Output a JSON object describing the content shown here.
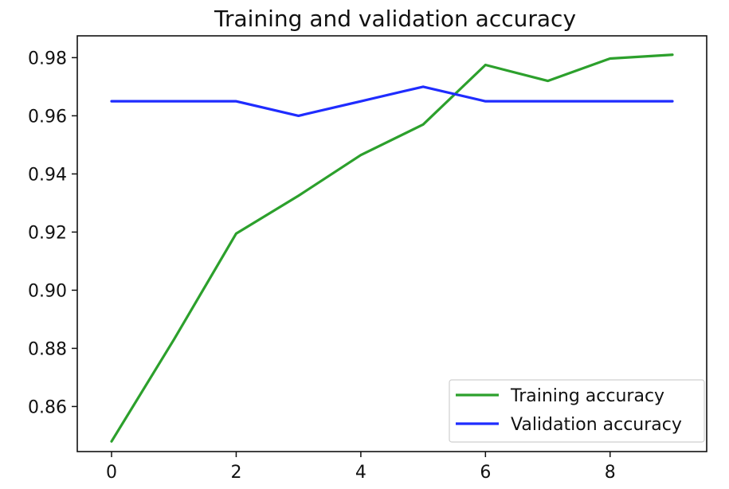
{
  "chart_data": {
    "type": "line",
    "title": "Training and validation accuracy",
    "xlabel": "",
    "ylabel": "",
    "x": [
      0,
      1,
      2,
      3,
      4,
      5,
      6,
      7,
      8,
      9
    ],
    "series": [
      {
        "name": "Training accuracy",
        "color": "#2ca02c",
        "values": [
          0.848,
          0.883,
          0.9195,
          0.9325,
          0.9465,
          0.957,
          0.9775,
          0.972,
          0.9797,
          0.981
        ]
      },
      {
        "name": "Validation accuracy",
        "color": "#1f2cff",
        "values": [
          0.965,
          0.965,
          0.965,
          0.96,
          0.965,
          0.97,
          0.965,
          0.965,
          0.965,
          0.965
        ]
      }
    ],
    "xlim": [
      -0.55,
      9.55
    ],
    "ylim": [
      0.8445,
      0.9875
    ],
    "xticks": [
      0,
      2,
      4,
      6,
      8
    ],
    "xtick_labels": [
      "0",
      "2",
      "4",
      "6",
      "8"
    ],
    "yticks": [
      0.86,
      0.88,
      0.9,
      0.92,
      0.94,
      0.96,
      0.98
    ],
    "ytick_labels": [
      "0.86",
      "0.88",
      "0.90",
      "0.92",
      "0.94",
      "0.96",
      "0.98"
    ],
    "grid": false,
    "legend_position": "lower-right"
  }
}
